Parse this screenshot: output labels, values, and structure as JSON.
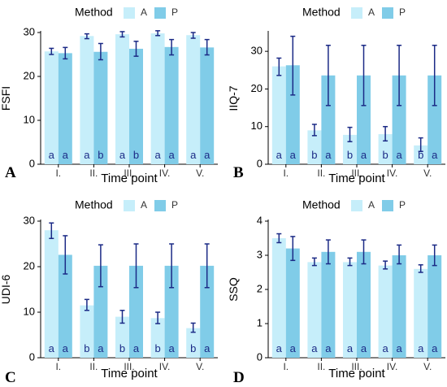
{
  "chart_data": [
    {
      "panel_label": "A",
      "type": "bar",
      "legend_title": "Method",
      "xlabel": "Time point",
      "ylabel": "FSFI",
      "ylim": [
        0,
        30
      ],
      "yticks": [
        0,
        10,
        20,
        30
      ],
      "categories": [
        "I.",
        "II.",
        "III.",
        "IV.",
        "V."
      ],
      "series": [
        {
          "name": "A",
          "values": [
            25.7,
            29.2,
            29.6,
            29.8,
            29.4
          ],
          "err_low": [
            25.0,
            28.6,
            29.0,
            29.3,
            28.7
          ],
          "err_high": [
            26.4,
            29.7,
            30.2,
            30.4,
            30.0
          ],
          "letters": [
            "a",
            "a",
            "a",
            "a",
            "a"
          ]
        },
        {
          "name": "P",
          "values": [
            25.3,
            25.6,
            26.3,
            26.7,
            26.6
          ],
          "err_low": [
            24.0,
            23.8,
            24.6,
            24.9,
            24.9
          ],
          "err_high": [
            26.6,
            27.5,
            28.0,
            28.4,
            28.4
          ],
          "letters": [
            "a",
            "b",
            "b",
            "a",
            "a"
          ]
        }
      ]
    },
    {
      "panel_label": "B",
      "type": "bar",
      "legend_title": "Method",
      "xlabel": "Time point",
      "ylabel": "IIQ-7",
      "ylim": [
        0,
        35
      ],
      "yticks": [
        0,
        10,
        20,
        30
      ],
      "categories": [
        "I.",
        "II.",
        "III.",
        "IV.",
        "V."
      ],
      "series": [
        {
          "name": "A",
          "values": [
            26.0,
            9.0,
            7.8,
            8.0,
            5.0
          ],
          "err_low": [
            23.6,
            7.6,
            6.0,
            6.2,
            3.4
          ],
          "err_high": [
            28.2,
            10.6,
            9.8,
            10.0,
            7.0
          ],
          "letters": [
            "a",
            "b",
            "b",
            "b",
            "b"
          ]
        },
        {
          "name": "P",
          "values": [
            26.3,
            23.6,
            23.6,
            23.6,
            23.6
          ],
          "err_low": [
            18.4,
            15.6,
            15.6,
            15.6,
            15.6
          ],
          "err_high": [
            34.0,
            31.6,
            31.6,
            31.6,
            31.6
          ],
          "letters": [
            "a",
            "a",
            "a",
            "a",
            "a"
          ]
        }
      ]
    },
    {
      "panel_label": "C",
      "type": "bar",
      "legend_title": "Method",
      "xlabel": "Time point",
      "ylabel": "UDI-6",
      "ylim": [
        0,
        30
      ],
      "yticks": [
        0,
        10,
        20,
        30
      ],
      "categories": [
        "I.",
        "II.",
        "III.",
        "IV.",
        "V."
      ],
      "series": [
        {
          "name": "A",
          "values": [
            28.0,
            11.5,
            9.0,
            8.7,
            6.5
          ],
          "err_low": [
            26.2,
            10.4,
            7.6,
            7.5,
            5.6
          ],
          "err_high": [
            29.6,
            12.8,
            10.4,
            10.0,
            7.6
          ],
          "letters": [
            "a",
            "b",
            "b",
            "b",
            "b"
          ]
        },
        {
          "name": "P",
          "values": [
            22.6,
            20.2,
            20.2,
            20.2,
            20.2
          ],
          "err_low": [
            18.4,
            15.6,
            15.4,
            15.4,
            15.4
          ],
          "err_high": [
            26.8,
            24.8,
            25.0,
            25.0,
            25.0
          ],
          "letters": [
            "a",
            "a",
            "a",
            "a",
            "a"
          ]
        }
      ]
    },
    {
      "panel_label": "D",
      "type": "bar",
      "legend_title": "Method",
      "xlabel": "Time point",
      "ylabel": "SSQ",
      "ylim": [
        0,
        4
      ],
      "yticks": [
        0,
        1,
        2,
        3,
        4
      ],
      "categories": [
        "I.",
        "II.",
        "III.",
        "IV.",
        "V."
      ],
      "series": [
        {
          "name": "A",
          "values": [
            3.5,
            2.8,
            2.8,
            2.7,
            2.6
          ],
          "err_low": [
            3.37,
            2.7,
            2.7,
            2.6,
            2.5
          ],
          "err_high": [
            3.63,
            2.92,
            2.92,
            2.83,
            2.72
          ],
          "letters": [
            "a",
            "a",
            "a",
            "a",
            "a"
          ]
        },
        {
          "name": "P",
          "values": [
            3.2,
            3.1,
            3.1,
            3.0,
            3.0
          ],
          "err_low": [
            2.85,
            2.75,
            2.75,
            2.75,
            2.7
          ],
          "err_high": [
            3.55,
            3.45,
            3.45,
            3.3,
            3.3
          ],
          "letters": [
            "a",
            "a",
            "a",
            "a",
            "a"
          ]
        }
      ]
    }
  ],
  "colors": {
    "A": "#c6eefa",
    "P": "#80cce8",
    "error_bar": "#1b2a86",
    "axis": "#000000",
    "letter": "#1b2a86"
  }
}
